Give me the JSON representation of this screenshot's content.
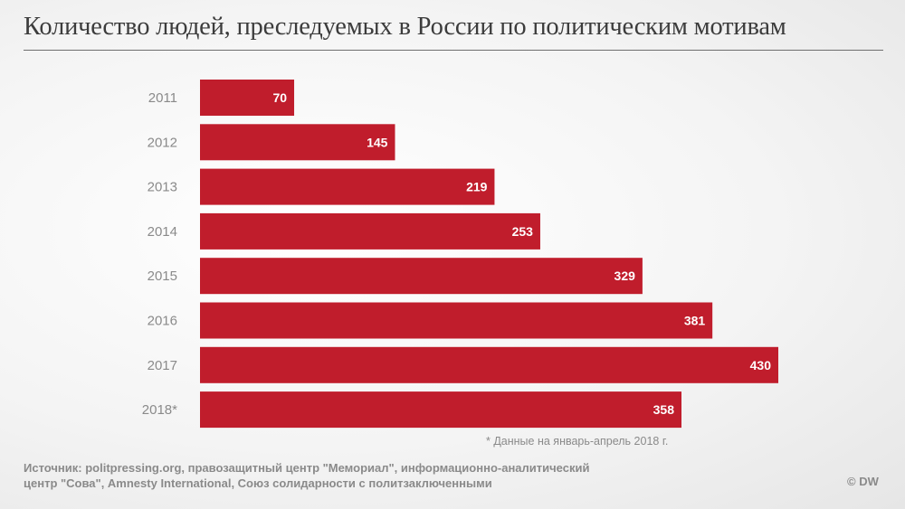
{
  "title": "Количество людей, преследуемых в России по политическим мотивам",
  "chart_data": {
    "type": "bar",
    "orientation": "horizontal",
    "categories": [
      "2011",
      "2012",
      "2013",
      "2014",
      "2015",
      "2016",
      "2017",
      "2018*"
    ],
    "values": [
      70,
      145,
      219,
      253,
      329,
      381,
      430,
      358
    ],
    "xlim": [
      0,
      430
    ],
    "bar_color": "#c01d2c",
    "label_color": "#ffffff",
    "category_color": "#8a8a8a",
    "grid": false,
    "legend": false
  },
  "footnote": "* Данные на январь-апрель 2018 г.",
  "source": {
    "line1": "Источник: politpressing.org, правозащитный центр \"Мемориал\", информационно-аналитический",
    "line2": "центр \"Сова\", Amnesty International, Союз солидарности с политзаключенными"
  },
  "copyright": "© DW"
}
